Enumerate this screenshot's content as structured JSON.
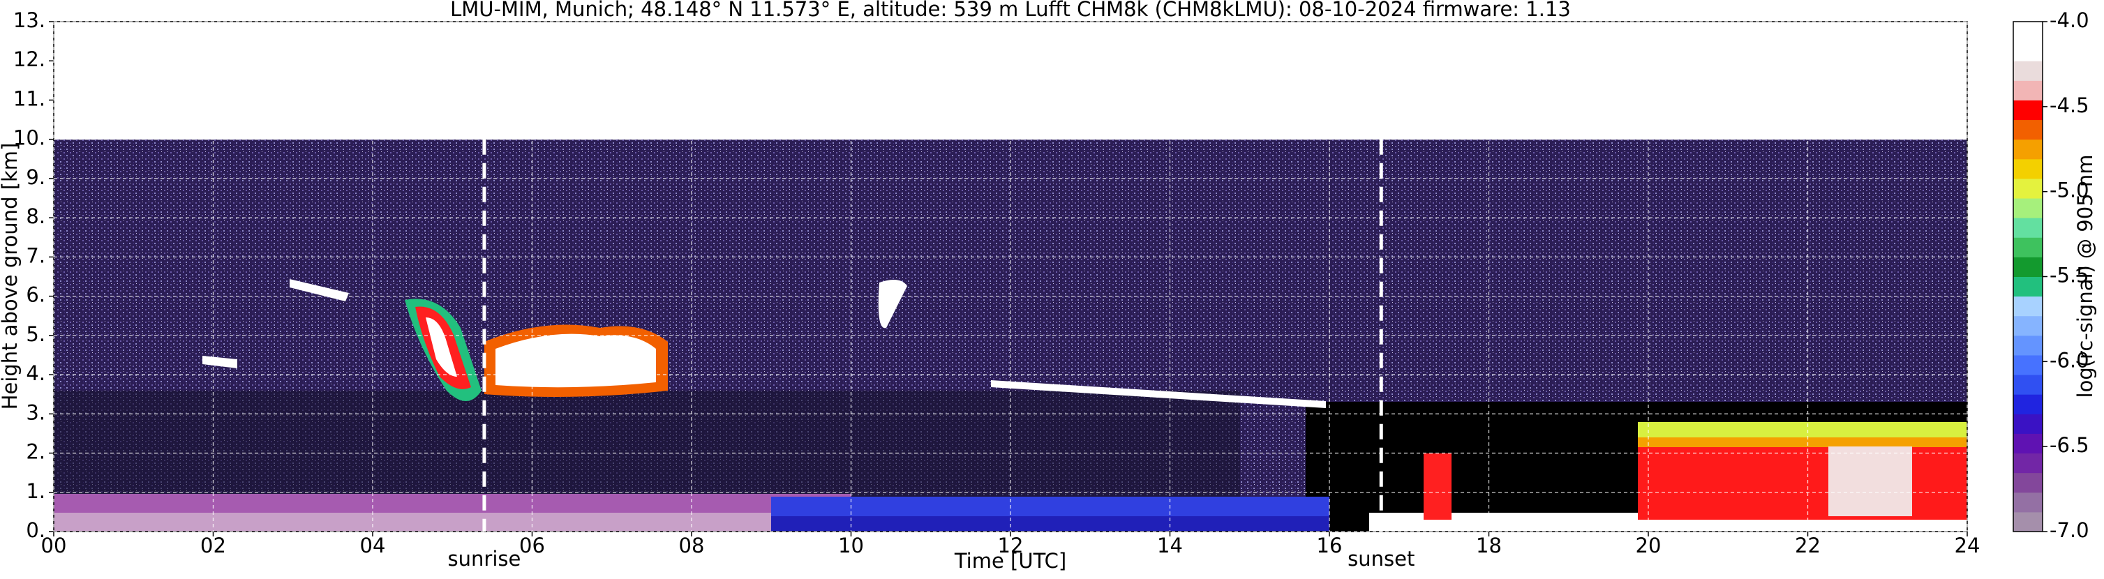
{
  "chart_data": {
    "type": "heatmap",
    "title": "LMU-MIM, Munich; 48.148° N 11.573° E, altitude: 539 m    Lufft CHM8k (CHM8kLMU): 08-10-2024    firmware: 1.13",
    "x_label": "Time [UTC]",
    "y_label": "Height above ground [km]",
    "xlim": [
      0,
      24
    ],
    "xticks": [
      {
        "value": 0,
        "label": "00"
      },
      {
        "value": 2,
        "label": "02"
      },
      {
        "value": 4,
        "label": "04"
      },
      {
        "value": 6,
        "label": "06"
      },
      {
        "value": 8,
        "label": "08"
      },
      10,
      12,
      14,
      16,
      18,
      20,
      22,
      24
    ],
    "ylim": [
      0,
      13
    ],
    "yticks": [
      {
        "value": 0,
        "label": "0."
      },
      {
        "value": 1,
        "label": "1."
      },
      {
        "value": 2,
        "label": "2."
      },
      {
        "value": 3,
        "label": "3."
      },
      {
        "value": 4,
        "label": "4."
      },
      {
        "value": 5,
        "label": "5."
      },
      {
        "value": 6,
        "label": "6."
      },
      {
        "value": 7,
        "label": "7."
      },
      {
        "value": 8,
        "label": "8."
      },
      {
        "value": 9,
        "label": "9."
      },
      {
        "value": 10,
        "label": "10."
      },
      {
        "value": 11,
        "label": "11."
      },
      {
        "value": 12,
        "label": "12."
      },
      {
        "value": 13,
        "label": "13."
      }
    ],
    "grid": true,
    "annotations": [
      {
        "label": "sunrise",
        "x": 5.4
      },
      {
        "label": "sunset",
        "x": 16.65
      }
    ],
    "colorbar": {
      "label": "log(rc-signal) @ 905 nm",
      "lim": [
        -7,
        -4
      ],
      "ticks": [
        {
          "value": -4,
          "label": "-4.0"
        },
        -4.5,
        {
          "value": -5,
          "label": "-5.0"
        },
        -5.5,
        {
          "value": -6,
          "label": "-6.0"
        },
        -6.5,
        {
          "value": -7,
          "label": "-7.0"
        }
      ],
      "colors": [
        "#a58fab",
        "#9470a4",
        "#83479b",
        "#7226a6",
        "#5f12b2",
        "#3a12c4",
        "#2024e0",
        "#3050f2",
        "#4772ff",
        "#6494ff",
        "#86b4ff",
        "#a8d2ff",
        "#22c07e",
        "#139a2e",
        "#3ec25e",
        "#63e0a0",
        "#a6f07c",
        "#e4f23e",
        "#f3d000",
        "#f5a000",
        "#f26000",
        "#ff0000",
        "#f2b5b5",
        "#eadcdc",
        "#ffffff",
        "#ffffff"
      ]
    }
  }
}
